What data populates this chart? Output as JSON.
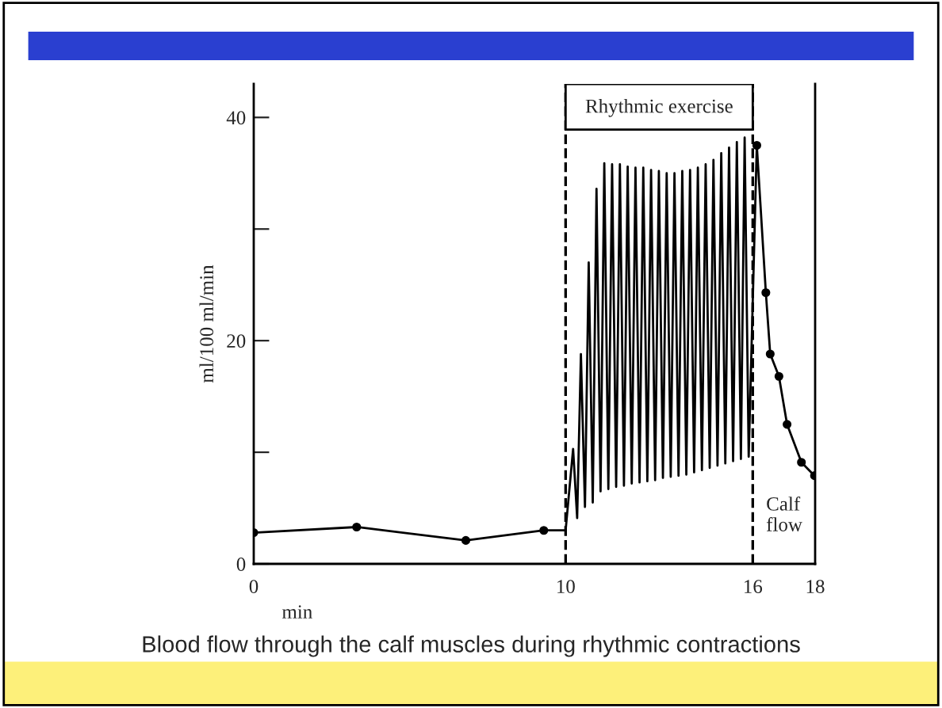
{
  "chart_data": {
    "type": "line",
    "xlabel": "min",
    "ylabel": "ml/100 ml/min",
    "xlim": [
      0,
      18
    ],
    "ylim": [
      0,
      43
    ],
    "xticks": [
      0,
      10,
      16,
      18
    ],
    "yticks": [
      0,
      {
        "value": 10,
        "label": null
      },
      20,
      {
        "value": 30,
        "label": null
      },
      40
    ],
    "grid": false,
    "legend": false,
    "series": [
      {
        "color": "#000000",
        "marker": "circle",
        "x": [
          0,
          3.3,
          6.8,
          9.3
        ],
        "values": [
          2.8,
          3.3,
          2.1,
          3.0
        ]
      },
      {
        "color": "#000000",
        "marker": "none",
        "x": [
          9.3,
          10.0,
          10.24,
          10.37,
          10.49,
          10.62,
          10.74,
          10.87,
          10.99,
          11.12,
          11.24,
          11.37,
          11.49,
          11.62,
          11.74,
          11.87,
          11.99,
          12.12,
          12.24,
          12.37,
          12.49,
          12.62,
          12.74,
          12.87,
          12.99,
          13.12,
          13.24,
          13.37,
          13.49,
          13.62,
          13.74,
          13.87,
          13.99,
          14.12,
          14.24,
          14.37,
          14.49,
          14.62,
          14.74,
          14.87,
          14.99,
          15.12,
          15.24,
          15.37,
          15.49,
          15.62,
          15.74,
          15.87,
          16.13
        ],
        "values": [
          3.0,
          3.0,
          10.3,
          4.1,
          18.8,
          5.1,
          27,
          5.5,
          33.6,
          6.5,
          35.9,
          6.7,
          35.8,
          6.9,
          35.8,
          7.0,
          35.6,
          7.2,
          35.5,
          7.3,
          35.5,
          7.4,
          35.3,
          7.5,
          35.2,
          7.7,
          35.0,
          7.8,
          35.0,
          7.9,
          35.2,
          8.0,
          35.3,
          8.2,
          35.5,
          8.4,
          35.8,
          8.6,
          36.2,
          8.8,
          36.8,
          9.0,
          37.3,
          9.2,
          37.8,
          9.4,
          38.2,
          9.6,
          37.5
        ]
      },
      {
        "color": "#000000",
        "marker": "circle",
        "x": [
          16.13,
          16.42,
          16.56,
          16.84,
          17.1,
          17.56,
          17.98
        ],
        "values": [
          37.5,
          24.3,
          18.8,
          16.8,
          12.5,
          9.1,
          7.9
        ]
      }
    ],
    "ref_lines": [
      {
        "axis": "x",
        "value": 10,
        "line_style": "dashed",
        "color": "#000000"
      },
      {
        "axis": "x",
        "value": 16,
        "line_style": "dashed",
        "color": "#000000"
      }
    ],
    "bands": [
      {
        "axis": "x",
        "from": 10,
        "to": 16,
        "label": "Rhythmic exercise"
      }
    ],
    "annotations": [
      "Calf flow",
      "Blood flow through the calf muscles during rhythmic contractions"
    ]
  }
}
